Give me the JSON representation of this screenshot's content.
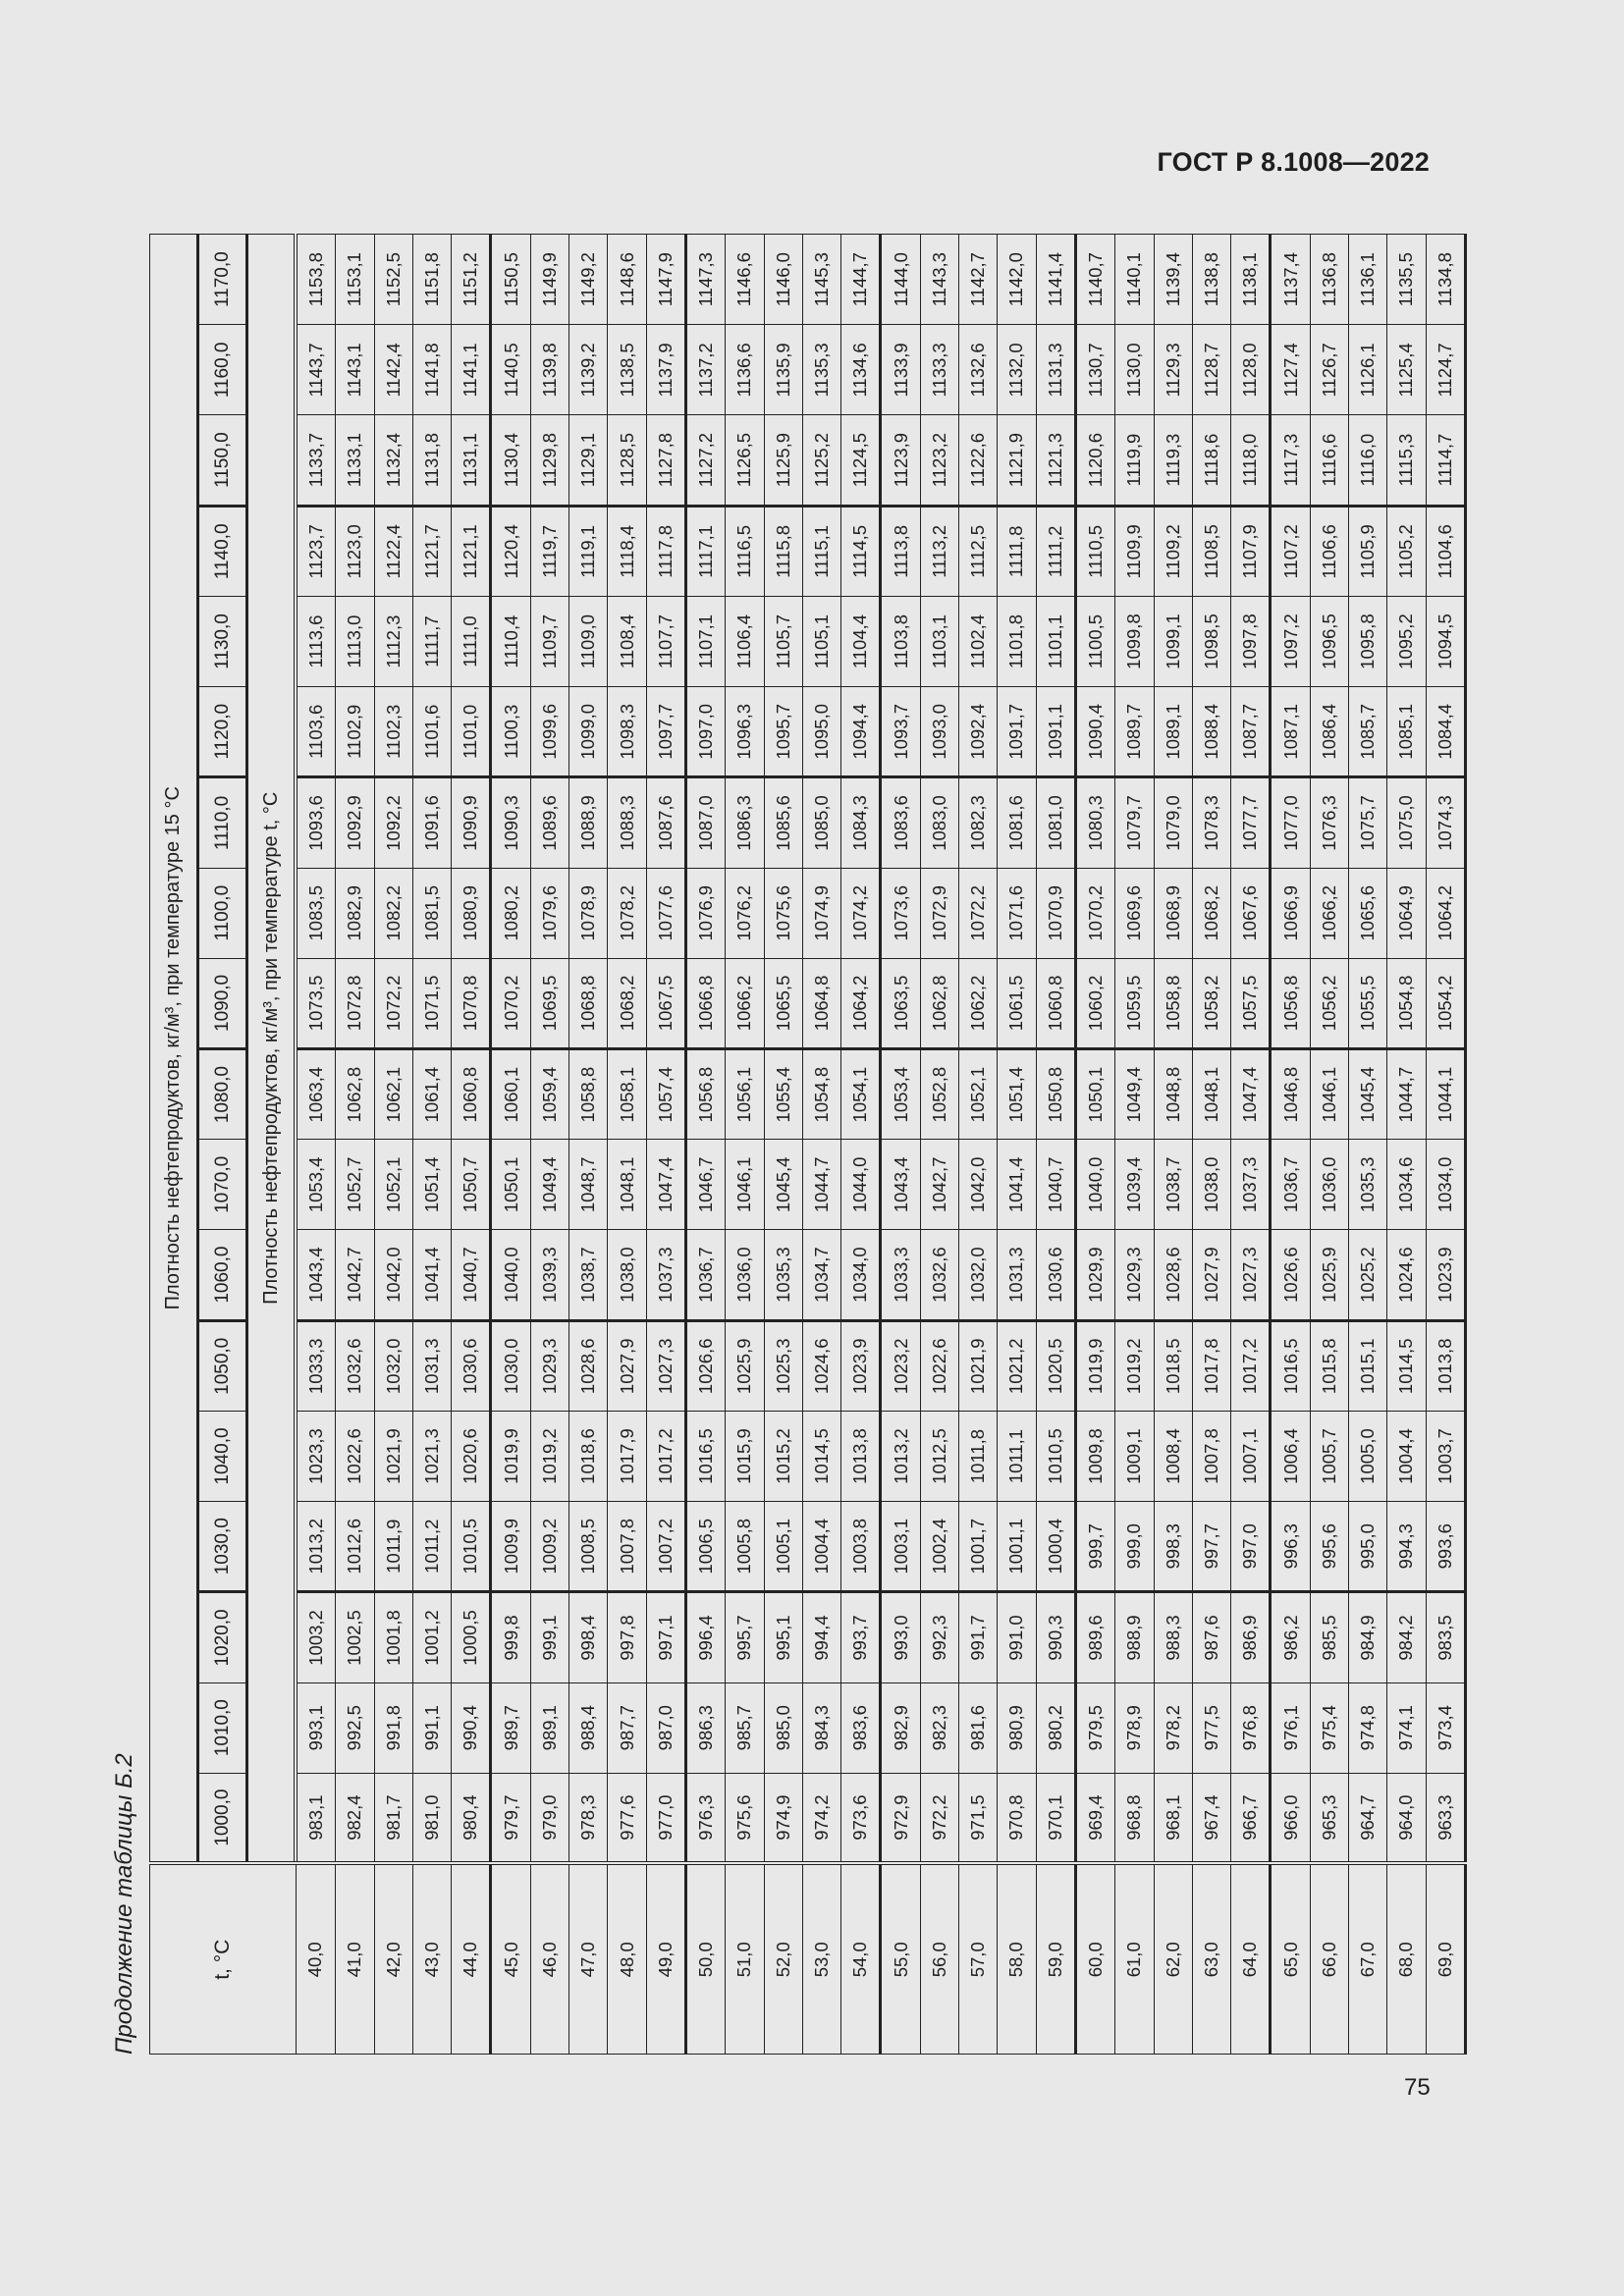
{
  "header": {
    "doc_code": "ГОСТ Р 8.1008—2022"
  },
  "caption": "Продолжение таблицы Б.2",
  "page_number": "75",
  "table": {
    "t_header": "t, °C",
    "group_header_15": "Плотность нефтепродуктов, кг/м³, при температуре 15 °C",
    "group_header_t": "Плотность нефтепродуктов, кг/м³, при температуре t, °C",
    "density_columns": [
      "1000,0",
      "1010,0",
      "1020,0",
      "1030,0",
      "1040,0",
      "1050,0",
      "1060,0",
      "1070,0",
      "1080,0",
      "1090,0",
      "1100,0",
      "1110,0",
      "1120,0",
      "1130,0",
      "1140,0",
      "1150,0",
      "1160,0",
      "1170,0"
    ],
    "rows": [
      {
        "t": "40,0",
        "v": [
          "983,1",
          "993,1",
          "1003,2",
          "1013,2",
          "1023,3",
          "1033,3",
          "1043,4",
          "1053,4",
          "1063,4",
          "1073,5",
          "1083,5",
          "1093,6",
          "1103,6",
          "1113,6",
          "1123,7",
          "1133,7",
          "1143,7",
          "1153,8"
        ]
      },
      {
        "t": "41,0",
        "v": [
          "982,4",
          "992,5",
          "1002,5",
          "1012,6",
          "1022,6",
          "1032,6",
          "1042,7",
          "1052,7",
          "1062,8",
          "1072,8",
          "1082,9",
          "1092,9",
          "1102,9",
          "1113,0",
          "1123,0",
          "1133,1",
          "1143,1",
          "1153,1"
        ]
      },
      {
        "t": "42,0",
        "v": [
          "981,7",
          "991,8",
          "1001,8",
          "1011,9",
          "1021,9",
          "1032,0",
          "1042,0",
          "1052,1",
          "1062,1",
          "1072,2",
          "1082,2",
          "1092,2",
          "1102,3",
          "1112,3",
          "1122,4",
          "1132,4",
          "1142,4",
          "1152,5"
        ]
      },
      {
        "t": "43,0",
        "v": [
          "981,0",
          "991,1",
          "1001,2",
          "1011,2",
          "1021,3",
          "1031,3",
          "1041,4",
          "1051,4",
          "1061,4",
          "1071,5",
          "1081,5",
          "1091,6",
          "1101,6",
          "1111,7",
          "1121,7",
          "1131,8",
          "1141,8",
          "1151,8"
        ]
      },
      {
        "t": "44,0",
        "v": [
          "980,4",
          "990,4",
          "1000,5",
          "1010,5",
          "1020,6",
          "1030,6",
          "1040,7",
          "1050,7",
          "1060,8",
          "1070,8",
          "1080,9",
          "1090,9",
          "1101,0",
          "1111,0",
          "1121,1",
          "1131,1",
          "1141,1",
          "1151,2"
        ]
      },
      {
        "t": "45,0",
        "v": [
          "979,7",
          "989,7",
          "999,8",
          "1009,9",
          "1019,9",
          "1030,0",
          "1040,0",
          "1050,1",
          "1060,1",
          "1070,2",
          "1080,2",
          "1090,3",
          "1100,3",
          "1110,4",
          "1120,4",
          "1130,4",
          "1140,5",
          "1150,5"
        ]
      },
      {
        "t": "46,0",
        "v": [
          "979,0",
          "989,1",
          "999,1",
          "1009,2",
          "1019,2",
          "1029,3",
          "1039,3",
          "1049,4",
          "1059,4",
          "1069,5",
          "1079,6",
          "1089,6",
          "1099,6",
          "1109,7",
          "1119,7",
          "1129,8",
          "1139,8",
          "1149,9"
        ]
      },
      {
        "t": "47,0",
        "v": [
          "978,3",
          "988,4",
          "998,4",
          "1008,5",
          "1018,6",
          "1028,6",
          "1038,7",
          "1048,7",
          "1058,8",
          "1068,8",
          "1078,9",
          "1088,9",
          "1099,0",
          "1109,0",
          "1119,1",
          "1129,1",
          "1139,2",
          "1149,2"
        ]
      },
      {
        "t": "48,0",
        "v": [
          "977,6",
          "987,7",
          "997,8",
          "1007,8",
          "1017,9",
          "1027,9",
          "1038,0",
          "1048,1",
          "1058,1",
          "1068,2",
          "1078,2",
          "1088,3",
          "1098,3",
          "1108,4",
          "1118,4",
          "1128,5",
          "1138,5",
          "1148,6"
        ]
      },
      {
        "t": "49,0",
        "v": [
          "977,0",
          "987,0",
          "997,1",
          "1007,2",
          "1017,2",
          "1027,3",
          "1037,3",
          "1047,4",
          "1057,4",
          "1067,5",
          "1077,6",
          "1087,6",
          "1097,7",
          "1107,7",
          "1117,8",
          "1127,8",
          "1137,9",
          "1147,9"
        ]
      },
      {
        "t": "50,0",
        "v": [
          "976,3",
          "986,3",
          "996,4",
          "1006,5",
          "1016,5",
          "1026,6",
          "1036,7",
          "1046,7",
          "1056,8",
          "1066,8",
          "1076,9",
          "1087,0",
          "1097,0",
          "1107,1",
          "1117,1",
          "1127,2",
          "1137,2",
          "1147,3"
        ]
      },
      {
        "t": "51,0",
        "v": [
          "975,6",
          "985,7",
          "995,7",
          "1005,8",
          "1015,9",
          "1025,9",
          "1036,0",
          "1046,1",
          "1056,1",
          "1066,2",
          "1076,2",
          "1086,3",
          "1096,3",
          "1106,4",
          "1116,5",
          "1126,5",
          "1136,6",
          "1146,6"
        ]
      },
      {
        "t": "52,0",
        "v": [
          "974,9",
          "985,0",
          "995,1",
          "1005,1",
          "1015,2",
          "1025,3",
          "1035,3",
          "1045,4",
          "1055,4",
          "1065,5",
          "1075,6",
          "1085,6",
          "1095,7",
          "1105,7",
          "1115,8",
          "1125,9",
          "1135,9",
          "1146,0"
        ]
      },
      {
        "t": "53,0",
        "v": [
          "974,2",
          "984,3",
          "994,4",
          "1004,4",
          "1014,5",
          "1024,6",
          "1034,7",
          "1044,7",
          "1054,8",
          "1064,8",
          "1074,9",
          "1085,0",
          "1095,0",
          "1105,1",
          "1115,1",
          "1125,2",
          "1135,3",
          "1145,3"
        ]
      },
      {
        "t": "54,0",
        "v": [
          "973,6",
          "983,6",
          "993,7",
          "1003,8",
          "1013,8",
          "1023,9",
          "1034,0",
          "1044,0",
          "1054,1",
          "1064,2",
          "1074,2",
          "1084,3",
          "1094,4",
          "1104,4",
          "1114,5",
          "1124,5",
          "1134,6",
          "1144,7"
        ]
      },
      {
        "t": "55,0",
        "v": [
          "972,9",
          "982,9",
          "993,0",
          "1003,1",
          "1013,2",
          "1023,2",
          "1033,3",
          "1043,4",
          "1053,4",
          "1063,5",
          "1073,6",
          "1083,6",
          "1093,7",
          "1103,8",
          "1113,8",
          "1123,9",
          "1133,9",
          "1144,0"
        ]
      },
      {
        "t": "56,0",
        "v": [
          "972,2",
          "982,3",
          "992,3",
          "1002,4",
          "1012,5",
          "1022,6",
          "1032,6",
          "1042,7",
          "1052,8",
          "1062,8",
          "1072,9",
          "1083,0",
          "1093,0",
          "1103,1",
          "1113,2",
          "1123,2",
          "1133,3",
          "1143,3"
        ]
      },
      {
        "t": "57,0",
        "v": [
          "971,5",
          "981,6",
          "991,7",
          "1001,7",
          "1011,8",
          "1021,9",
          "1032,0",
          "1042,0",
          "1052,1",
          "1062,2",
          "1072,2",
          "1082,3",
          "1092,4",
          "1102,4",
          "1112,5",
          "1122,6",
          "1132,6",
          "1142,7"
        ]
      },
      {
        "t": "58,0",
        "v": [
          "970,8",
          "980,9",
          "991,0",
          "1001,1",
          "1011,1",
          "1021,2",
          "1031,3",
          "1041,4",
          "1051,4",
          "1061,5",
          "1071,6",
          "1081,6",
          "1091,7",
          "1101,8",
          "1111,8",
          "1121,9",
          "1132,0",
          "1142,0"
        ]
      },
      {
        "t": "59,0",
        "v": [
          "970,1",
          "980,2",
          "990,3",
          "1000,4",
          "1010,5",
          "1020,5",
          "1030,6",
          "1040,7",
          "1050,8",
          "1060,8",
          "1070,9",
          "1081,0",
          "1091,1",
          "1101,1",
          "1111,2",
          "1121,3",
          "1131,3",
          "1141,4"
        ]
      },
      {
        "t": "60,0",
        "v": [
          "969,4",
          "979,5",
          "989,6",
          "999,7",
          "1009,8",
          "1019,9",
          "1029,9",
          "1040,0",
          "1050,1",
          "1060,2",
          "1070,2",
          "1080,3",
          "1090,4",
          "1100,5",
          "1110,5",
          "1120,6",
          "1130,7",
          "1140,7"
        ]
      },
      {
        "t": "61,0",
        "v": [
          "968,8",
          "978,9",
          "988,9",
          "999,0",
          "1009,1",
          "1019,2",
          "1029,3",
          "1039,4",
          "1049,4",
          "1059,5",
          "1069,6",
          "1079,7",
          "1089,7",
          "1099,8",
          "1109,9",
          "1119,9",
          "1130,0",
          "1140,1"
        ]
      },
      {
        "t": "62,0",
        "v": [
          "968,1",
          "978,2",
          "988,3",
          "998,3",
          "1008,4",
          "1018,5",
          "1028,6",
          "1038,7",
          "1048,8",
          "1058,8",
          "1068,9",
          "1079,0",
          "1089,1",
          "1099,1",
          "1109,2",
          "1119,3",
          "1129,3",
          "1139,4"
        ]
      },
      {
        "t": "63,0",
        "v": [
          "967,4",
          "977,5",
          "987,6",
          "997,7",
          "1007,8",
          "1017,8",
          "1027,9",
          "1038,0",
          "1048,1",
          "1058,2",
          "1068,2",
          "1078,3",
          "1088,4",
          "1098,5",
          "1108,5",
          "1118,6",
          "1128,7",
          "1138,8"
        ]
      },
      {
        "t": "64,0",
        "v": [
          "966,7",
          "976,8",
          "986,9",
          "997,0",
          "1007,1",
          "1017,2",
          "1027,3",
          "1037,3",
          "1047,4",
          "1057,5",
          "1067,6",
          "1077,7",
          "1087,7",
          "1097,8",
          "1107,9",
          "1118,0",
          "1128,0",
          "1138,1"
        ]
      },
      {
        "t": "65,0",
        "v": [
          "966,0",
          "976,1",
          "986,2",
          "996,3",
          "1006,4",
          "1016,5",
          "1026,6",
          "1036,7",
          "1046,8",
          "1056,8",
          "1066,9",
          "1077,0",
          "1087,1",
          "1097,2",
          "1107,2",
          "1117,3",
          "1127,4",
          "1137,4"
        ]
      },
      {
        "t": "66,0",
        "v": [
          "965,3",
          "975,4",
          "985,5",
          "995,6",
          "1005,7",
          "1015,8",
          "1025,9",
          "1036,0",
          "1046,1",
          "1056,2",
          "1066,2",
          "1076,3",
          "1086,4",
          "1096,5",
          "1106,6",
          "1116,6",
          "1126,7",
          "1136,8"
        ]
      },
      {
        "t": "67,0",
        "v": [
          "964,7",
          "974,8",
          "984,9",
          "995,0",
          "1005,0",
          "1015,1",
          "1025,2",
          "1035,3",
          "1045,4",
          "1055,5",
          "1065,6",
          "1075,7",
          "1085,7",
          "1095,8",
          "1105,9",
          "1116,0",
          "1126,1",
          "1136,1"
        ]
      },
      {
        "t": "68,0",
        "v": [
          "964,0",
          "974,1",
          "984,2",
          "994,3",
          "1004,4",
          "1014,5",
          "1024,6",
          "1034,6",
          "1044,7",
          "1054,8",
          "1064,9",
          "1075,0",
          "1085,1",
          "1095,2",
          "1105,2",
          "1115,3",
          "1125,4",
          "1135,5"
        ]
      },
      {
        "t": "69,0",
        "v": [
          "963,3",
          "973,4",
          "983,5",
          "993,6",
          "1003,7",
          "1013,8",
          "1023,9",
          "1034,0",
          "1044,1",
          "1054,2",
          "1064,2",
          "1074,3",
          "1084,4",
          "1094,5",
          "1104,6",
          "1114,7",
          "1124,7",
          "1134,8"
        ]
      }
    ]
  }
}
